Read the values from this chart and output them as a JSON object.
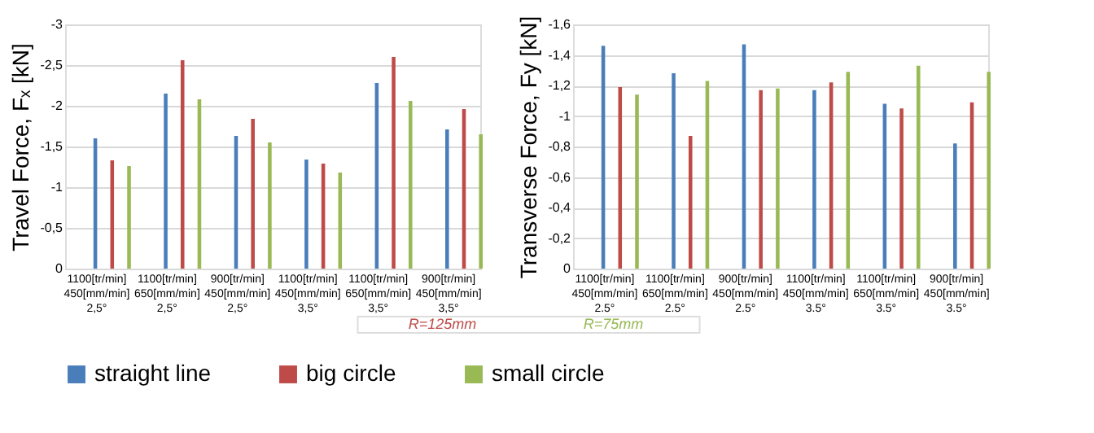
{
  "chart_data": [
    {
      "type": "bar",
      "ylabel": "Travel Force, Fₓ [kN]",
      "categories": [
        "1100[tr/min]\n450[mm/min]\n2,5°",
        "1100[tr/min]\n650[mm/min]\n2,5°",
        "900[tr/min]\n450[mm/min]\n2,5°",
        "1100[tr/min]\n450[mm/min]\n3,5°",
        "1100[tr/min]\n650[mm/min]\n3,5°",
        "900[tr/min]\n450[mm/min]\n3,5°"
      ],
      "series": [
        {
          "name": "straight line",
          "color": "#4a7ebb",
          "values": [
            -1.6,
            -2.15,
            -1.63,
            -1.34,
            -2.28,
            -1.71
          ]
        },
        {
          "name": "big circle",
          "color": "#be4b48",
          "values": [
            -1.33,
            -2.56,
            -1.84,
            -1.29,
            -2.6,
            -1.96
          ]
        },
        {
          "name": "small circle",
          "color": "#98b954",
          "values": [
            -1.26,
            -2.08,
            -1.55,
            -1.18,
            -2.06,
            -1.65
          ]
        }
      ],
      "ylim": [
        0,
        -3
      ],
      "yticks": [
        0,
        {
          "value": -0.5,
          "label": "-0,5"
        },
        -1,
        {
          "value": -1.5,
          "label": "-1,5"
        },
        -2,
        {
          "value": -2.5,
          "label": "-2,5"
        },
        -3
      ],
      "grid": "y",
      "legend": "bottom",
      "annotations": [
        "R=125mm",
        "R=75mm"
      ]
    },
    {
      "type": "bar",
      "ylabel": "Transverse Force, Fy [kN]",
      "categories": [
        "1100[tr/min]\n450[mm/min]\n2.5°",
        "1100[tr/min]\n650[mm/min]\n2.5°",
        "900[tr/min]\n450[mm/min]\n2.5°",
        "1100[tr/min]\n450[mm/min]\n3.5°",
        "1100[tr/min]\n650[mm/min]\n3.5°",
        "900[tr/min]\n450[mm/min]\n3.5°"
      ],
      "series": [
        {
          "name": "straight line",
          "color": "#4a7ebb",
          "values": [
            -1.46,
            -1.28,
            -1.47,
            -1.17,
            -1.08,
            -0.82
          ]
        },
        {
          "name": "big circle",
          "color": "#be4b48",
          "values": [
            -1.19,
            -0.87,
            -1.17,
            -1.22,
            -1.05,
            -1.09
          ]
        },
        {
          "name": "small circle",
          "color": "#98b954",
          "values": [
            -1.14,
            -1.23,
            -1.18,
            -1.29,
            -1.33,
            -1.29
          ]
        }
      ],
      "ylim": [
        0,
        -1.6
      ],
      "yticks": [
        0,
        {
          "value": -0.2,
          "label": "-0,2"
        },
        {
          "value": -0.4,
          "label": "-0,4"
        },
        {
          "value": -0.6,
          "label": "-0,6"
        },
        {
          "value": -0.8,
          "label": "-0,8"
        },
        -1,
        {
          "value": -1.2,
          "label": "-1,2"
        },
        {
          "value": -1.4,
          "label": "-1,4"
        },
        {
          "value": -1.6,
          "label": "-1,6"
        }
      ],
      "grid": "y",
      "legend": "bottom"
    }
  ]
}
